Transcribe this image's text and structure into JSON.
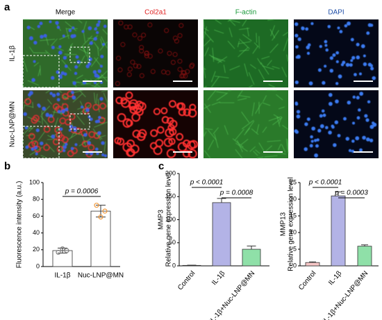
{
  "figure": {
    "panel_labels": [
      "a",
      "b",
      "c"
    ],
    "columns": [
      "Merge",
      "Col2a1",
      "F-actin",
      "DAPI"
    ],
    "column_colors": [
      "#000000",
      "#e02020",
      "#1a9a3a",
      "#1f4fa8"
    ],
    "rows": [
      "IL-1β",
      "Nuc-LNP@MN"
    ]
  },
  "chart_data": [
    {
      "type": "bar",
      "ylabel": "Fluorescence intensity (a.u.)",
      "categories": [
        "IL-1β",
        "Nuc-LNP@MN"
      ],
      "values": [
        19,
        66
      ],
      "errors": [
        3,
        7
      ],
      "points": [
        [
          17,
          21,
          19
        ],
        [
          73,
          59,
          66
        ]
      ],
      "colors": [
        "#ffffff",
        "#ffffff"
      ],
      "point_colors": [
        "#808080",
        "#f39a3c"
      ],
      "ylim": [
        0,
        100
      ],
      "yticks": [
        0,
        20,
        40,
        60,
        80,
        100
      ],
      "annotations": [
        "p = 0.0006"
      ]
    },
    {
      "type": "bar",
      "title": "MMP3",
      "ylabel": "Relative gene expression level",
      "categories": [
        "Control",
        "IL-1β",
        "IL-1β+Nuc-LNP@MN"
      ],
      "values": [
        1,
        137,
        36
      ],
      "errors": [
        0.5,
        9,
        7
      ],
      "colors": [
        "#f7c6c6",
        "#b3b3e6",
        "#8fe0a8"
      ],
      "ylim": [
        0,
        200
      ],
      "yticks": [
        0,
        50,
        100,
        150,
        200
      ],
      "annotations": [
        "p < 0.0001",
        "p = 0.0008"
      ]
    },
    {
      "type": "bar",
      "title": "MMP13",
      "ylabel": "Relative gene expression level",
      "categories": [
        "Control",
        "IL-1β",
        "IL-1β+Nuc-LNP@MN"
      ],
      "values": [
        1,
        21,
        5.9
      ],
      "errors": [
        0.2,
        1.2,
        0.4
      ],
      "colors": [
        "#f7c6c6",
        "#b3b3e6",
        "#8fe0a8"
      ],
      "ylim": [
        0,
        25
      ],
      "yticks": [
        0,
        5,
        10,
        15,
        20,
        25
      ],
      "annotations": [
        "p < 0.0001",
        "p = 0.0003"
      ]
    }
  ]
}
